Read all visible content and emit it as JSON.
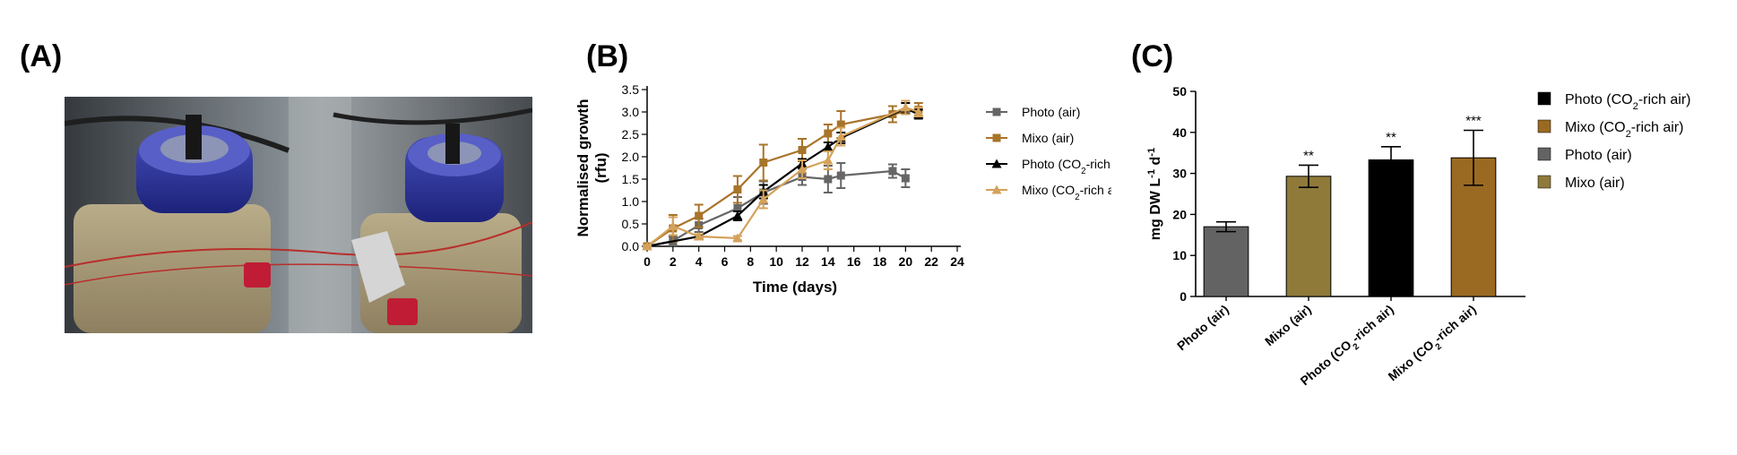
{
  "panels": {
    "a_label": "(A)",
    "b_label": "(B)",
    "c_label": "(C)"
  },
  "photo": {
    "description_icon": "bioreactor-photo"
  },
  "chart_data": [
    {
      "type": "line",
      "panel": "B",
      "xlabel": "Time (days)",
      "ylabel_line1": "Normalised growth",
      "ylabel_line2": "(rfu)",
      "xlim": [
        0,
        24
      ],
      "ylim": [
        0,
        3.5
      ],
      "x_ticks": [
        "0",
        "2",
        "4",
        "6",
        "8",
        "10",
        "12",
        "14",
        "16",
        "18",
        "20",
        "22",
        "24"
      ],
      "y_ticks": [
        "0.0",
        "0.5",
        "1.0",
        "1.5",
        "2.0",
        "2.5",
        "3.0",
        "3.5"
      ],
      "legend_position": "right",
      "series": [
        {
          "name": "Photo (air)",
          "color": "#666666",
          "marker": "square",
          "x": [
            0,
            2,
            4,
            7,
            9,
            12,
            14,
            15,
            19,
            20
          ],
          "y": [
            0,
            0.12,
            0.47,
            0.85,
            1.2,
            1.55,
            1.5,
            1.58,
            1.68,
            1.52
          ],
          "err": [
            0.03,
            0.1,
            0.15,
            0.25,
            0.25,
            0.18,
            0.3,
            0.28,
            0.15,
            0.2
          ]
        },
        {
          "name": "Mixo (air)",
          "color": "#a8742a",
          "marker": "square",
          "x": [
            0,
            2,
            4,
            7,
            9,
            12,
            14,
            15,
            19,
            21
          ],
          "y": [
            0,
            0.4,
            0.68,
            1.27,
            1.87,
            2.15,
            2.52,
            2.72,
            2.95,
            3.05
          ],
          "err": [
            0.03,
            0.3,
            0.25,
            0.3,
            0.4,
            0.25,
            0.2,
            0.3,
            0.18,
            0.15
          ]
        },
        {
          "name_prefix": "Photo (CO",
          "name_sub": "2",
          "name_suffix": "-rich air)",
          "color": "#000000",
          "marker": "triangle",
          "x": [
            0,
            4,
            7,
            9,
            12,
            14,
            15,
            20,
            21
          ],
          "y": [
            0,
            0.22,
            0.68,
            1.22,
            1.85,
            2.22,
            2.42,
            3.08,
            2.95
          ],
          "err": [
            0.03,
            0.05,
            0.1,
            0.15,
            0.1,
            0.1,
            0.12,
            0.12,
            0.1
          ]
        },
        {
          "name_prefix": "Mixo (CO",
          "name_sub": "2",
          "name_suffix": "-rich air)",
          "color": "#d4a25a",
          "marker": "triangle",
          "x": [
            0,
            2,
            4,
            7,
            9,
            12,
            14,
            15,
            20,
            21
          ],
          "y": [
            0,
            0.45,
            0.22,
            0.18,
            1.05,
            1.72,
            1.92,
            2.45,
            3.1,
            3.0
          ],
          "err": [
            0.03,
            0.2,
            0.05,
            0.05,
            0.2,
            0.2,
            0.2,
            0.2,
            0.15,
            0.1
          ]
        }
      ]
    },
    {
      "type": "bar",
      "panel": "C",
      "ylabel": "mg DW L-1 d-1",
      "ylabel_main": "mg DW L",
      "ylabel_sup1": "-1",
      "ylabel_mid": " d",
      "ylabel_sup2": "-1",
      "ylim": [
        0,
        50
      ],
      "y_ticks": [
        "0",
        "10",
        "20",
        "30",
        "40",
        "50"
      ],
      "legend_position": "right",
      "categories": [
        {
          "label": "Photo (air)"
        },
        {
          "label": "Mixo (air)"
        },
        {
          "label_prefix": "Photo (CO",
          "label_sub": "2",
          "label_suffix": "-rich air)"
        },
        {
          "label_prefix": "Mixo (CO",
          "label_sub": "2",
          "label_suffix": "-rich air)"
        }
      ],
      "values": [
        17,
        29.3,
        33.3,
        33.8
      ],
      "errors": [
        1.2,
        2.7,
        3.2,
        6.7
      ],
      "significance": [
        "",
        "**",
        "**",
        "***"
      ],
      "colors": [
        "#636363",
        "#8f7a3a",
        "#000000",
        "#9b6a22"
      ],
      "legend": [
        {
          "prefix": "Photo (CO",
          "sub": "2",
          "suffix": "-rich air)",
          "color": "#000000"
        },
        {
          "prefix": "Mixo (CO",
          "sub": "2",
          "suffix": "-rich air)",
          "color": "#9b6a22"
        },
        {
          "prefix": "Photo (air)",
          "sub": "",
          "suffix": "",
          "color": "#636363"
        },
        {
          "prefix": "Mixo (air)",
          "sub": "",
          "suffix": "",
          "color": "#8f7a3a"
        }
      ]
    }
  ]
}
